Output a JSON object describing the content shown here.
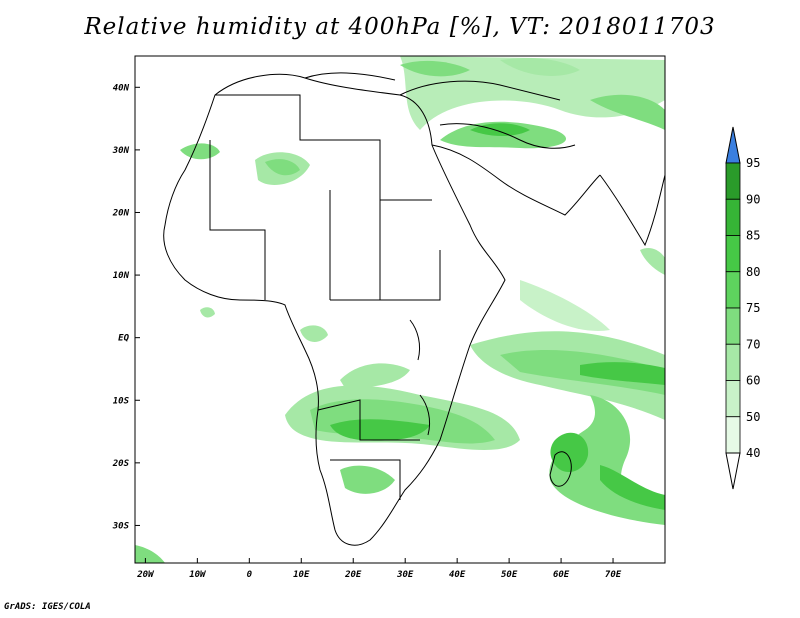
{
  "title": "Relative humidity at 400hPa [%], VT: 2018011703",
  "credit": "GrADS: IGES/COLA",
  "map": {
    "lon_range": [
      -22,
      80
    ],
    "lat_range": [
      -36,
      45
    ],
    "lat_ticks": [
      {
        "value": 40,
        "label": "40N"
      },
      {
        "value": 30,
        "label": "30N"
      },
      {
        "value": 20,
        "label": "20N"
      },
      {
        "value": 10,
        "label": "10N"
      },
      {
        "value": 0,
        "label": "EQ"
      },
      {
        "value": -10,
        "label": "10S"
      },
      {
        "value": -20,
        "label": "20S"
      },
      {
        "value": -30,
        "label": "30S"
      }
    ],
    "lon_ticks": [
      {
        "value": -20,
        "label": "20W"
      },
      {
        "value": -10,
        "label": "10W"
      },
      {
        "value": 0,
        "label": "0"
      },
      {
        "value": 10,
        "label": "10E"
      },
      {
        "value": 20,
        "label": "20E"
      },
      {
        "value": 30,
        "label": "30E"
      },
      {
        "value": 40,
        "label": "40E"
      },
      {
        "value": 50,
        "label": "50E"
      },
      {
        "value": 60,
        "label": "60E"
      },
      {
        "value": 70,
        "label": "70E"
      }
    ]
  },
  "colorbar": {
    "levels": [
      "95",
      "90",
      "85",
      "80",
      "75",
      "70",
      "60",
      "50",
      "40"
    ],
    "colors": [
      "#2a9b2a",
      "#36b536",
      "#46c846",
      "#5ed35e",
      "#7fdd7f",
      "#a6e8a6",
      "#c8f2c8",
      "#e6fae6"
    ],
    "top_arrow_color": "#3a7fe0",
    "bottom_arrow_color": "#ffffff"
  },
  "colors": {
    "land_outline": "#000000",
    "frame": "#000000"
  }
}
